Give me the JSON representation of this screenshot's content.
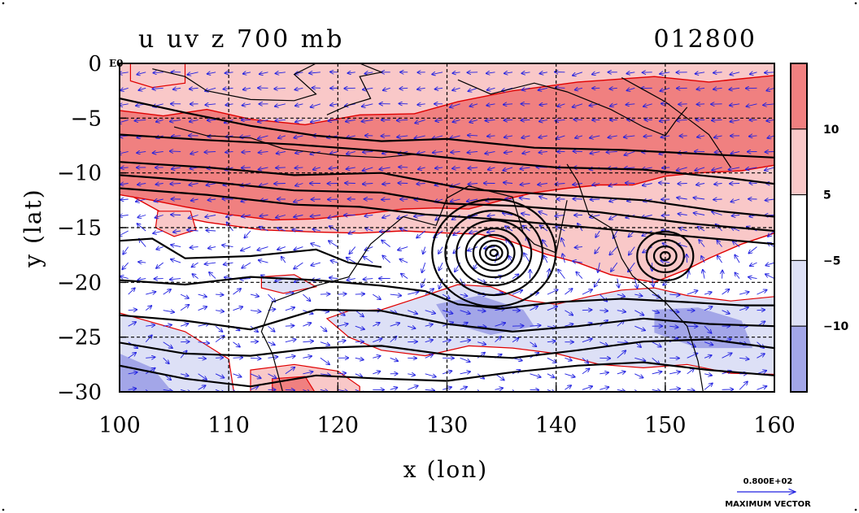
{
  "header": {
    "title": "u uv z 700 mb",
    "time_label": "012800"
  },
  "chart_data": {
    "type": "contour-map",
    "title": "u uv z 700 mb",
    "xlabel": "x (lon)",
    "ylabel": "y (lat)",
    "xlim": [
      100,
      160
    ],
    "ylim": [
      -30,
      0
    ],
    "x_ticks": [
      "100",
      "110",
      "120",
      "130",
      "140",
      "150",
      "160"
    ],
    "y_ticks": [
      "0",
      "−5",
      "−10",
      "−15",
      "−20",
      "−25",
      "−30"
    ],
    "x_tick_values": [
      100,
      110,
      120,
      130,
      140,
      150,
      160
    ],
    "y_tick_values": [
      0,
      -5,
      -10,
      -15,
      -20,
      -25,
      -30
    ],
    "grid": true,
    "shading_levels": [
      -10,
      -5,
      5,
      10
    ],
    "colorbar": {
      "labels": [
        "10",
        "5",
        "−5",
        "−10"
      ],
      "label_values": [
        10,
        5,
        -5,
        -10
      ],
      "colors": [
        "#f08080",
        "#f9c8c8",
        "#ffffff",
        "#dde0f6",
        "#a3a6e8"
      ]
    },
    "low_centers": [
      {
        "lon": 134.3,
        "lat": -17.3
      },
      {
        "lon": 150.0,
        "lat": -17.6
      }
    ],
    "colors": {
      "strong_positive": "#f08080",
      "weak_positive": "#f9c8c8",
      "neutral": "#ffffff",
      "weak_negative": "#dde0f6",
      "strong_negative": "#a3a6e8",
      "zero_contour": "#e00000",
      "height_contour": "#000000",
      "vectors": "#2020e0",
      "coast": "#000000"
    },
    "vector_legend": {
      "value": "0.800E+02",
      "label": "MAXIMUM VECTOR"
    },
    "corner_label": "E0"
  }
}
